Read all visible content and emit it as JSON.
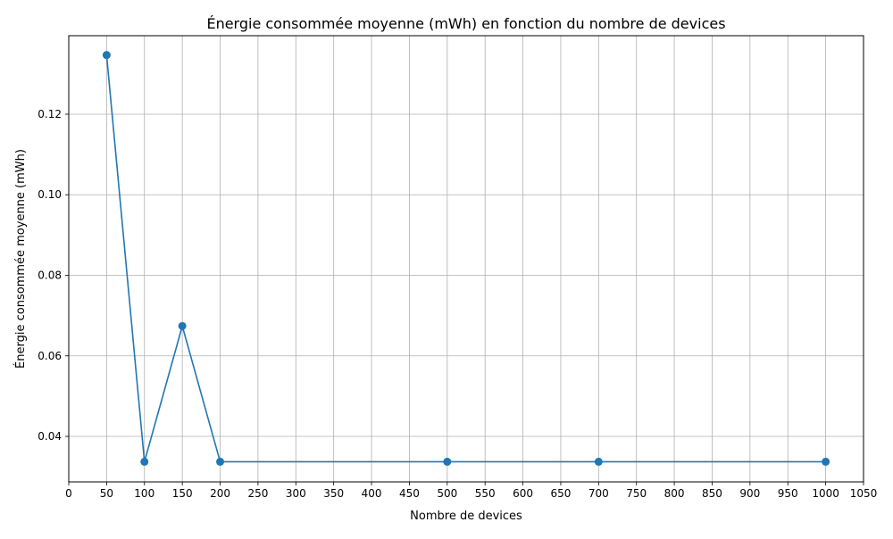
{
  "chart_data": {
    "type": "line",
    "title": "Énergie consommée moyenne (mWh) en fonction du nombre de devices",
    "xlabel": "Nombre de devices",
    "ylabel": "Énergie consommée moyenne (mWh)",
    "xlim": [
      0,
      1050
    ],
    "ylim": [
      0.0287,
      0.1395
    ],
    "x_ticks": [
      0,
      50,
      100,
      150,
      200,
      250,
      300,
      350,
      400,
      450,
      500,
      550,
      600,
      650,
      700,
      750,
      800,
      850,
      900,
      950,
      1000,
      1050
    ],
    "y_ticks": [
      0.04,
      0.06,
      0.08,
      0.1,
      0.12
    ],
    "y_tick_labels": [
      "0.04",
      "0.06",
      "0.08",
      "0.10",
      "0.12"
    ],
    "grid": true,
    "series": [
      {
        "color": "#1f77b4",
        "marker": "circle",
        "x": [
          50,
          100,
          150,
          200,
          500,
          700,
          1000
        ],
        "y": [
          0.1347,
          0.0337,
          0.0674,
          0.0337,
          0.0337,
          0.0337,
          0.0337
        ]
      }
    ]
  }
}
